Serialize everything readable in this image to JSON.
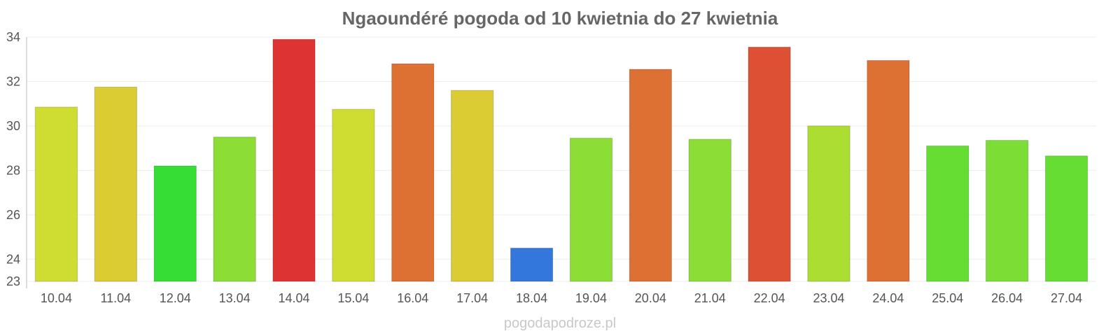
{
  "chart_data": {
    "type": "bar",
    "title": "Ngaoundéré pogoda od 10 kwietnia do 27 kwietnia",
    "xlabel": "",
    "ylabel": "",
    "ylim": [
      23,
      34
    ],
    "yticks": [
      23,
      24,
      26,
      28,
      30,
      32,
      34
    ],
    "grid": true,
    "categories": [
      "10.04",
      "11.04",
      "12.04",
      "13.04",
      "14.04",
      "15.04",
      "16.04",
      "17.04",
      "18.04",
      "19.04",
      "20.04",
      "21.04",
      "22.04",
      "23.04",
      "24.04",
      "25.04",
      "26.04",
      "27.04"
    ],
    "values": [
      30.85,
      31.75,
      28.2,
      29.5,
      33.9,
      30.75,
      32.8,
      31.6,
      24.5,
      29.45,
      32.55,
      29.4,
      33.55,
      30.0,
      32.95,
      29.1,
      29.35,
      28.65
    ],
    "colors": [
      "#cfdd33",
      "#dccc33",
      "#35dd35",
      "#8cdd35",
      "#dd3333",
      "#cfdd33",
      "#dd7033",
      "#dccc33",
      "#3377dd",
      "#8cdd35",
      "#dd7033",
      "#8cdd35",
      "#dd5033",
      "#acdd33",
      "#dd7033",
      "#66dd33",
      "#7cdd35",
      "#66dd33"
    ]
  },
  "watermark": "pogodapodroze.pl"
}
